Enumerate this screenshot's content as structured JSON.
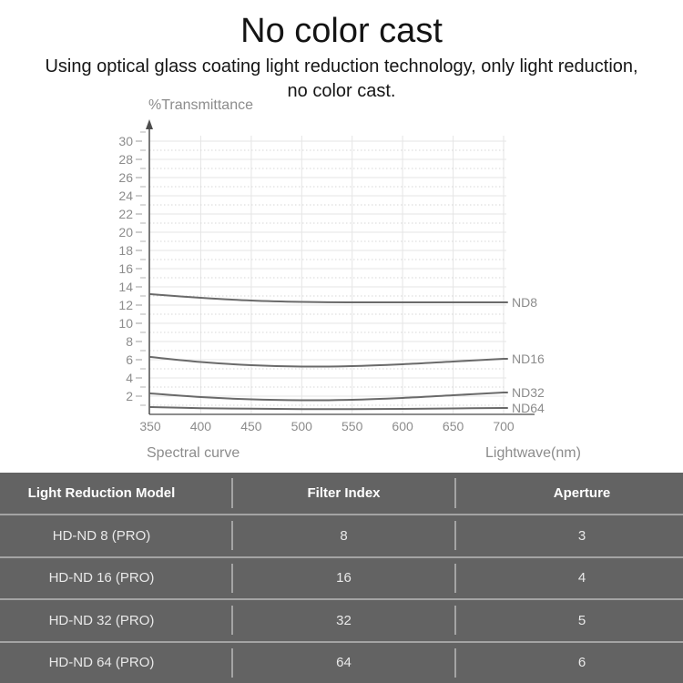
{
  "page": {
    "title": "No color cast",
    "subtitle_line1": "Using optical glass coating light reduction technology, only light reduction,",
    "subtitle_line2": "no color cast."
  },
  "chart_data": {
    "type": "line",
    "title": "Spectral curve",
    "caption": "Spectral curve",
    "ylabel": "%Transmittance",
    "xlabel": "Lightwave(nm)",
    "x": [
      350,
      400,
      450,
      500,
      550,
      600,
      650,
      700
    ],
    "xlim": [
      350,
      700
    ],
    "ylim": [
      0,
      30
    ],
    "x_tick_step": 50,
    "y_tick_step": 2,
    "y_tick_labels": [
      "2",
      "4",
      "6",
      "8",
      "10",
      "12",
      "14",
      "16",
      "18",
      "20",
      "22",
      "24",
      "26",
      "28",
      "30"
    ],
    "grid": true,
    "legend_position": "right of line ends",
    "series": [
      {
        "name": "ND8",
        "values": [
          13.2,
          12.8,
          12.5,
          12.35,
          12.3,
          12.3,
          12.3,
          12.3
        ]
      },
      {
        "name": "ND16",
        "values": [
          6.3,
          5.75,
          5.4,
          5.25,
          5.3,
          5.5,
          5.8,
          6.1
        ]
      },
      {
        "name": "ND32",
        "values": [
          2.3,
          1.9,
          1.65,
          1.55,
          1.6,
          1.8,
          2.1,
          2.4
        ]
      },
      {
        "name": "ND64",
        "values": [
          0.8,
          0.68,
          0.62,
          0.58,
          0.58,
          0.6,
          0.65,
          0.7
        ]
      }
    ]
  },
  "table": {
    "headers": [
      "Light Reduction Model",
      "Filter Index",
      "Aperture"
    ],
    "rows": [
      [
        "HD-ND 8 (PRO)",
        "8",
        "3"
      ],
      [
        "HD-ND 16 (PRO)",
        "16",
        "4"
      ],
      [
        "HD-ND 32 (PRO)",
        "32",
        "5"
      ],
      [
        "HD-ND 64 (PRO)",
        "64",
        "6"
      ]
    ]
  },
  "colors": {
    "background": "#ffffff",
    "heading_text": "#141414",
    "chart_label": "#8c8c8c",
    "curve": "#6a6a6a",
    "grid_solid": "#e5e5e5",
    "grid_dotted": "#d7d7d7",
    "y_axis": "#4d4d4d",
    "x_axis": "#8d8d8d",
    "tick_mark": "#b3b3b3",
    "table_bg": "#636363",
    "table_header_text": "#ffffff",
    "table_text": "#e9e9e9",
    "table_divider": "#a4a4a4"
  }
}
